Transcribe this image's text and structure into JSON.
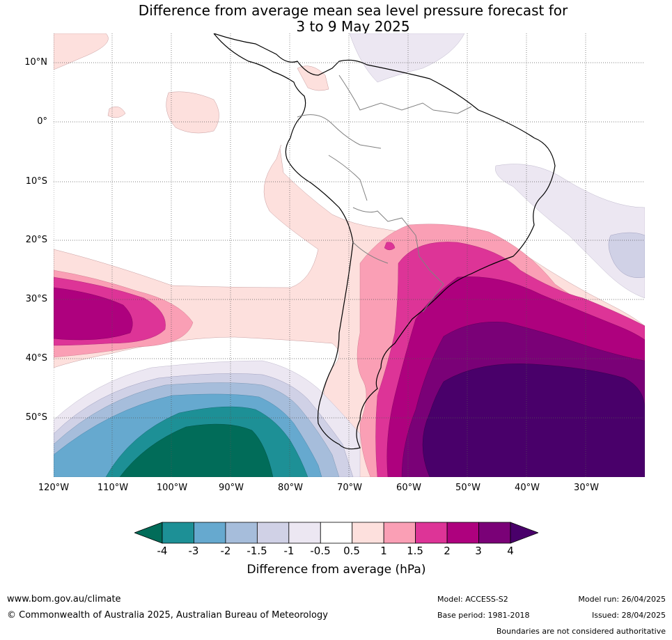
{
  "title_line1": "Difference from average mean sea level pressure forecast for",
  "title_line2": "3 to 9 May 2025",
  "lat_ticks": [
    "10°N",
    "0°",
    "10°S",
    "20°S",
    "30°S",
    "40°S",
    "50°S"
  ],
  "lon_ticks": [
    "120°W",
    "110°W",
    "100°W",
    "90°W",
    "80°W",
    "70°W",
    "60°W",
    "50°W",
    "40°W",
    "30°W"
  ],
  "legend": {
    "label": "Difference from average (hPa)",
    "ticks": [
      "-4",
      "-3",
      "-2",
      "-1.5",
      "-1",
      "-0.5",
      "0.5",
      "1",
      "1.5",
      "2",
      "3",
      "4"
    ],
    "colors": [
      "#1d9096",
      "#66a9cf",
      "#a6bddb",
      "#d0d1e6",
      "#ece7f2",
      "#ffffff",
      "#fde0dd",
      "#fa9fb5",
      "#dd3497",
      "#ae017e",
      "#7a0177"
    ],
    "under_color": "#016c59",
    "over_color": "#49006a"
  },
  "footer": {
    "website": "www.bom.gov.au/climate",
    "copyright": "© Commonwealth of Australia 2025, Australian Bureau of Meteorology",
    "model": "Model: ACCESS-S2",
    "base_period": "Base period: 1981-2018",
    "model_run": "Model run: 26/04/2025",
    "issued": "Issued: 28/04/2025",
    "boundaries_note": "Boundaries are not considered authoritative"
  }
}
